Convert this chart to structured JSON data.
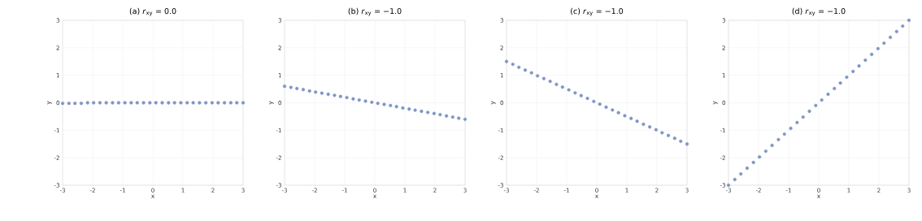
{
  "chart_data": [
    {
      "type": "scatter",
      "title": "(a) *r*$_{xy}$ = 0.0",
      "xlabel": "x",
      "ylabel": "y",
      "color": "#7f95c6",
      "marker": "circle",
      "grid": true,
      "xlim": [
        -3,
        3
      ],
      "ylim": [
        -3,
        3
      ],
      "xticks": [
        -3,
        -2,
        -1,
        0,
        1,
        2,
        3
      ],
      "yticks": [
        -3,
        -2,
        -1,
        0,
        1,
        2,
        3
      ],
      "x": [
        -3.0,
        -2.79,
        -2.59,
        -2.38,
        -2.17,
        -1.97,
        -1.76,
        -1.55,
        -1.34,
        -1.14,
        -0.93,
        -0.72,
        -0.52,
        -0.31,
        -0.1,
        0.1,
        0.31,
        0.52,
        0.72,
        0.93,
        1.14,
        1.34,
        1.55,
        1.76,
        1.97,
        2.17,
        2.38,
        2.59,
        2.79,
        3.0
      ],
      "values": [
        -0.02,
        -0.02,
        -0.02,
        -0.02,
        0.0,
        0.0,
        0.0,
        0.0,
        0.0,
        0.0,
        0.0,
        0.0,
        0.0,
        0.0,
        0.0,
        0.0,
        0.0,
        0.0,
        0.0,
        0.0,
        0.0,
        0.0,
        0.0,
        0.0,
        0.0,
        0.0,
        0.0,
        0.0,
        0.0,
        0.0
      ]
    },
    {
      "type": "scatter",
      "title": "(b) *r*$_{xy}$ = −1.0",
      "xlabel": "x",
      "ylabel": "y",
      "color": "#7f95c6",
      "marker": "circle",
      "grid": true,
      "xlim": [
        -3,
        3
      ],
      "ylim": [
        -3,
        3
      ],
      "xticks": [
        -3,
        -2,
        -1,
        0,
        1,
        2,
        3
      ],
      "yticks": [
        -3,
        -2,
        -1,
        0,
        1,
        2,
        3
      ],
      "x": [
        -3.0,
        -2.79,
        -2.59,
        -2.38,
        -2.17,
        -1.97,
        -1.76,
        -1.55,
        -1.34,
        -1.14,
        -0.93,
        -0.72,
        -0.52,
        -0.31,
        -0.1,
        0.1,
        0.31,
        0.52,
        0.72,
        0.93,
        1.14,
        1.34,
        1.55,
        1.76,
        1.97,
        2.17,
        2.38,
        2.59,
        2.79,
        3.0
      ],
      "values": [
        0.6,
        0.56,
        0.52,
        0.48,
        0.43,
        0.39,
        0.35,
        0.31,
        0.27,
        0.23,
        0.19,
        0.14,
        0.1,
        0.06,
        0.02,
        -0.02,
        -0.06,
        -0.1,
        -0.14,
        -0.19,
        -0.23,
        -0.27,
        -0.31,
        -0.35,
        -0.39,
        -0.43,
        -0.48,
        -0.52,
        -0.56,
        -0.6
      ]
    },
    {
      "type": "scatter",
      "title": "(c) *r*$_{xy}$ = −1.0",
      "xlabel": "x",
      "ylabel": "y",
      "color": "#7f95c6",
      "marker": "circle",
      "grid": true,
      "xlim": [
        -3,
        3
      ],
      "ylim": [
        -3,
        3
      ],
      "xticks": [
        -3,
        -2,
        -1,
        0,
        1,
        2,
        3
      ],
      "yticks": [
        -3,
        -2,
        -1,
        0,
        1,
        2,
        3
      ],
      "x": [
        -3.0,
        -2.79,
        -2.59,
        -2.38,
        -2.17,
        -1.97,
        -1.76,
        -1.55,
        -1.34,
        -1.14,
        -0.93,
        -0.72,
        -0.52,
        -0.31,
        -0.1,
        0.1,
        0.31,
        0.52,
        0.72,
        0.93,
        1.14,
        1.34,
        1.55,
        1.76,
        1.97,
        2.17,
        2.38,
        2.59,
        2.79,
        3.0
      ],
      "values": [
        1.5,
        1.4,
        1.29,
        1.19,
        1.09,
        0.98,
        0.88,
        0.78,
        0.67,
        0.57,
        0.47,
        0.36,
        0.26,
        0.16,
        0.05,
        -0.05,
        -0.16,
        -0.26,
        -0.36,
        -0.47,
        -0.57,
        -0.67,
        -0.78,
        -0.88,
        -0.98,
        -1.09,
        -1.19,
        -1.29,
        -1.4,
        -1.5
      ]
    },
    {
      "type": "scatter",
      "title": "(d) *r*$_{xy}$ = −1.0",
      "xlabel": "x",
      "ylabel": "y",
      "color": "#7f95c6",
      "marker": "circle",
      "grid": true,
      "xlim": [
        -3,
        3
      ],
      "ylim": [
        -3,
        3
      ],
      "xticks": [
        -3,
        -2,
        -1,
        0,
        1,
        2,
        3
      ],
      "yticks": [
        -3,
        -2,
        -1,
        0,
        1,
        2,
        3
      ],
      "x": [
        -3.0,
        -2.79,
        -2.59,
        -2.38,
        -2.17,
        -1.97,
        -1.76,
        -1.55,
        -1.34,
        -1.14,
        -0.93,
        -0.72,
        -0.52,
        -0.31,
        -0.1,
        0.1,
        0.31,
        0.52,
        0.72,
        0.93,
        1.14,
        1.34,
        1.55,
        1.76,
        1.97,
        2.17,
        2.38,
        2.59,
        2.79,
        3.0
      ],
      "values": [
        -3.0,
        -2.79,
        -2.59,
        -2.38,
        -2.17,
        -1.97,
        -1.76,
        -1.55,
        -1.34,
        -1.14,
        -0.93,
        -0.72,
        -0.52,
        -0.31,
        -0.1,
        0.1,
        0.31,
        0.52,
        0.72,
        0.93,
        1.14,
        1.34,
        1.55,
        1.76,
        1.97,
        2.17,
        2.38,
        2.59,
        2.79,
        3.0
      ]
    }
  ]
}
